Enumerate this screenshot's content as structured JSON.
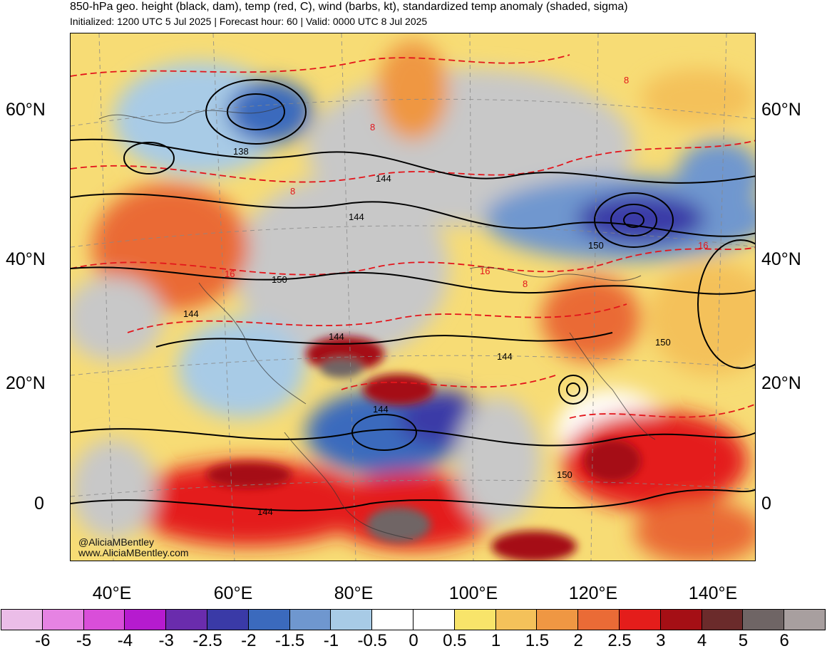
{
  "header": {
    "title": "850-hPa geo. height (black, dam), temp (red, C), wind (barbs, kt), standardized temp anomaly (shaded, sigma)",
    "subtitle": "Initialized: 1200 UTC 5 Jul 2025 | Forecast hour: 60 | Valid: 0000 UTC 8 Jul 2025"
  },
  "map": {
    "lat_labels": [
      "60°N",
      "40°N",
      "20°N",
      "0"
    ],
    "lon_labels": [
      "40°E",
      "60°E",
      "80°E",
      "100°E",
      "120°E",
      "140°E"
    ],
    "contour_labels": [
      "138",
      "144",
      "144",
      "150",
      "144",
      "144",
      "144",
      "144",
      "150",
      "150",
      "150",
      "144"
    ],
    "temp_labels": [
      "8",
      "8",
      "8",
      "16",
      "16",
      "16",
      "8"
    ],
    "contour_color": "#000000",
    "temp_contour_color": "#e3151b"
  },
  "credit": {
    "handle": "@AliciaMBentley",
    "site": "www.AliciaMBentley.com"
  },
  "colorbar": {
    "colors": [
      "#ebbde8",
      "#e683e3",
      "#d94ed9",
      "#b61bcf",
      "#6a2cad",
      "#3a3aa7",
      "#3b6abd",
      "#6f97cf",
      "#a8cbe6",
      "#ffffff",
      "#ffffff",
      "#f8e46a",
      "#f4c15a",
      "#ef9743",
      "#ea6b36",
      "#e41d1b",
      "#a50f15",
      "#6b2b2b",
      "#6f6565",
      "#a89f9f"
    ],
    "ticks": [
      "-6",
      "-5",
      "-4",
      "-3",
      "-2.5",
      "-2",
      "-1.5",
      "-1",
      "-0.5",
      "0",
      "0.5",
      "1",
      "1.5",
      "2",
      "2.5",
      "3",
      "4",
      "5",
      "6"
    ]
  }
}
